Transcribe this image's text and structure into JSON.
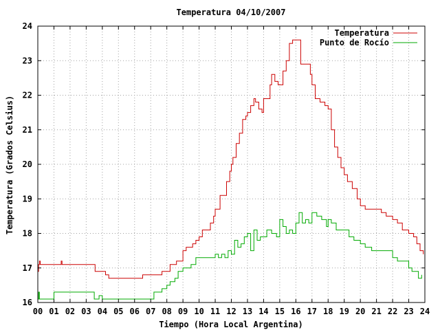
{
  "chart_data": {
    "type": "line",
    "title": "Temperatura 04/10/2007",
    "xlabel": "Tiempo (Hora Local Argentina)",
    "ylabel": "Temperatura (Grados Celsius)",
    "xlim": [
      0,
      24
    ],
    "ylim": [
      16,
      24
    ],
    "x_ticks": [
      0,
      1,
      2,
      3,
      4,
      5,
      6,
      7,
      8,
      9,
      10,
      11,
      12,
      13,
      14,
      15,
      16,
      17,
      18,
      19,
      20,
      21,
      22,
      23,
      24
    ],
    "x_tick_labels": [
      "00",
      "01",
      "02",
      "03",
      "04",
      "05",
      "06",
      "07",
      "08",
      "09",
      "10",
      "11",
      "12",
      "13",
      "14",
      "15",
      "16",
      "17",
      "18",
      "19",
      "20",
      "21",
      "22",
      "23",
      "24"
    ],
    "y_ticks": [
      16,
      17,
      18,
      19,
      20,
      21,
      22,
      23,
      24
    ],
    "y_tick_labels": [
      "16",
      "17",
      "18",
      "19",
      "20",
      "21",
      "22",
      "23",
      "24"
    ],
    "grid": true,
    "legend_position": "top-right",
    "series": [
      {
        "name": "Temperatura",
        "color": "#cc0000",
        "x": [
          0.0,
          0.05,
          0.1,
          0.15,
          0.25,
          0.5,
          1.0,
          1.4,
          1.45,
          1.5,
          2.0,
          3.0,
          3.5,
          3.55,
          3.6,
          4.0,
          4.2,
          4.4,
          5.0,
          6.0,
          6.4,
          6.5,
          7.0,
          7.2,
          7.5,
          7.7,
          8.0,
          8.2,
          8.4,
          8.6,
          8.8,
          9.0,
          9.2,
          9.4,
          9.6,
          9.8,
          10.0,
          10.2,
          10.5,
          10.7,
          10.9,
          11.0,
          11.3,
          11.5,
          11.7,
          11.9,
          12.0,
          12.1,
          12.3,
          12.5,
          12.7,
          12.9,
          13.0,
          13.2,
          13.4,
          13.5,
          13.7,
          13.9,
          14.0,
          14.2,
          14.4,
          14.5,
          14.7,
          14.9,
          15.0,
          15.2,
          15.4,
          15.6,
          15.8,
          16.0,
          16.3,
          16.5,
          16.7,
          16.9,
          17.0,
          17.2,
          17.5,
          17.8,
          18.0,
          18.2,
          18.4,
          18.6,
          18.8,
          19.0,
          19.2,
          19.5,
          19.8,
          20.0,
          20.3,
          20.6,
          21.0,
          21.3,
          21.6,
          22.0,
          22.3,
          22.6,
          23.0,
          23.3,
          23.5,
          23.7,
          23.9
        ],
        "y": [
          16.9,
          17.1,
          17.2,
          17.1,
          17.1,
          17.1,
          17.1,
          17.1,
          17.2,
          17.1,
          17.1,
          17.1,
          17.1,
          16.9,
          16.9,
          16.9,
          16.8,
          16.7,
          16.7,
          16.7,
          16.7,
          16.8,
          16.8,
          16.8,
          16.8,
          16.9,
          16.9,
          17.1,
          17.1,
          17.2,
          17.2,
          17.5,
          17.6,
          17.6,
          17.7,
          17.8,
          17.9,
          18.1,
          18.1,
          18.3,
          18.5,
          18.7,
          19.1,
          19.1,
          19.5,
          19.8,
          20.0,
          20.2,
          20.6,
          20.9,
          21.3,
          21.4,
          21.5,
          21.7,
          21.9,
          21.8,
          21.6,
          21.5,
          21.9,
          21.9,
          22.3,
          22.6,
          22.4,
          22.3,
          22.3,
          22.7,
          23.0,
          23.5,
          23.6,
          23.6,
          22.9,
          22.9,
          22.9,
          22.6,
          22.3,
          21.9,
          21.8,
          21.7,
          21.6,
          21.0,
          20.5,
          20.2,
          19.9,
          19.7,
          19.5,
          19.3,
          19.0,
          18.8,
          18.7,
          18.7,
          18.7,
          18.6,
          18.5,
          18.4,
          18.3,
          18.1,
          18.0,
          17.9,
          17.7,
          17.5,
          17.4
        ]
      },
      {
        "name": "Punto de Rocío",
        "color": "#00aa00",
        "x": [
          0.0,
          0.05,
          0.1,
          0.15,
          0.25,
          0.4,
          0.6,
          1.0,
          1.3,
          1.5,
          2.0,
          2.5,
          3.0,
          3.5,
          3.6,
          3.8,
          4.0,
          4.2,
          4.5,
          5.0,
          6.0,
          6.9,
          7.0,
          7.2,
          7.5,
          7.7,
          8.0,
          8.2,
          8.5,
          8.7,
          9.0,
          9.2,
          9.5,
          9.8,
          10.0,
          10.2,
          10.5,
          10.7,
          11.0,
          11.2,
          11.4,
          11.6,
          11.8,
          12.0,
          12.2,
          12.4,
          12.6,
          12.8,
          13.0,
          13.2,
          13.4,
          13.6,
          13.8,
          14.0,
          14.2,
          14.5,
          14.8,
          15.0,
          15.2,
          15.4,
          15.6,
          15.8,
          16.0,
          16.2,
          16.4,
          16.6,
          16.8,
          17.0,
          17.3,
          17.6,
          17.9,
          18.0,
          18.2,
          18.5,
          18.8,
          19.0,
          19.3,
          19.6,
          20.0,
          20.3,
          20.7,
          21.0,
          21.3,
          21.6,
          22.0,
          22.3,
          22.6,
          23.0,
          23.2,
          23.4,
          23.6,
          23.8
        ],
        "y": [
          16.1,
          16.3,
          16.1,
          16.1,
          16.1,
          16.1,
          16.1,
          16.3,
          16.3,
          16.3,
          16.3,
          16.3,
          16.3,
          16.1,
          16.1,
          16.2,
          16.1,
          16.1,
          16.1,
          16.1,
          16.1,
          16.1,
          16.1,
          16.3,
          16.3,
          16.4,
          16.5,
          16.6,
          16.7,
          16.9,
          17.0,
          17.0,
          17.1,
          17.3,
          17.3,
          17.3,
          17.3,
          17.3,
          17.4,
          17.3,
          17.4,
          17.3,
          17.5,
          17.4,
          17.8,
          17.6,
          17.7,
          17.9,
          18.0,
          17.5,
          18.1,
          17.8,
          17.9,
          17.9,
          18.1,
          18.0,
          17.9,
          18.4,
          18.2,
          18.0,
          18.1,
          18.0,
          18.3,
          18.6,
          18.3,
          18.4,
          18.3,
          18.6,
          18.5,
          18.4,
          18.2,
          18.4,
          18.3,
          18.1,
          18.1,
          18.1,
          17.9,
          17.8,
          17.7,
          17.6,
          17.5,
          17.5,
          17.5,
          17.5,
          17.3,
          17.2,
          17.2,
          17.0,
          16.9,
          16.9,
          16.7,
          16.8
        ]
      }
    ]
  }
}
